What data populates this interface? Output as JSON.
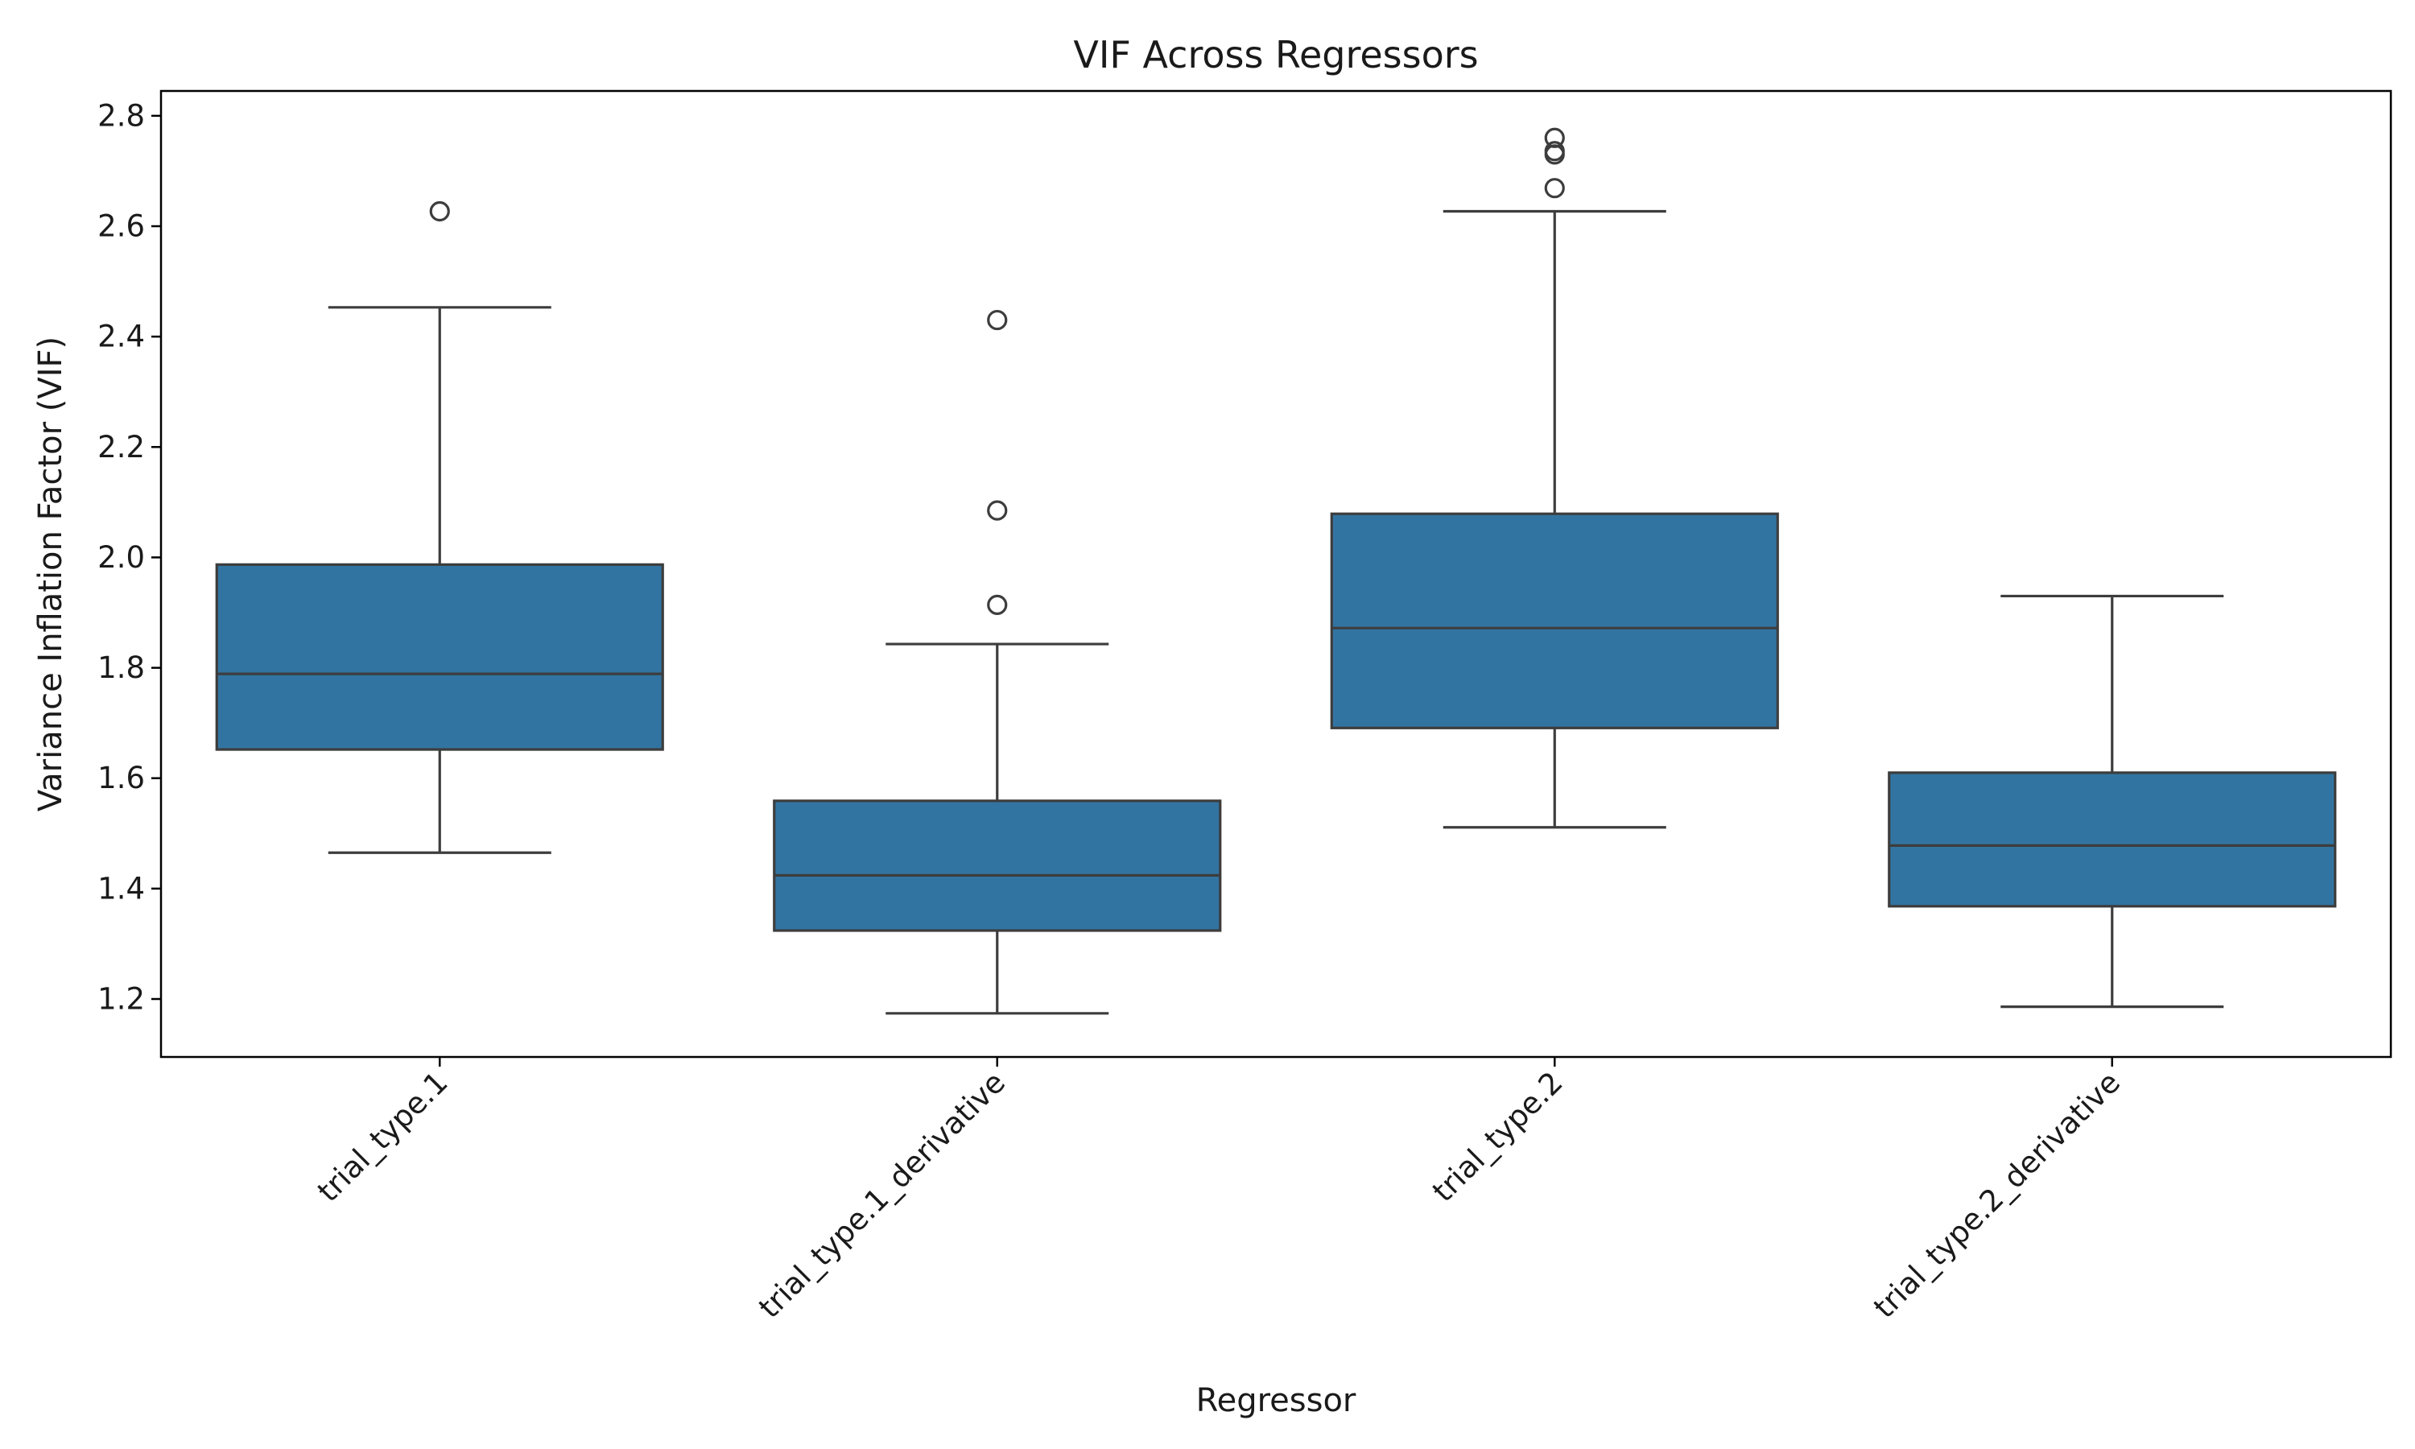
{
  "chart_data": {
    "type": "box",
    "title": "VIF Across Regressors",
    "xlabel": "Regressor",
    "ylabel": "Variance Inflation Factor (VIF)",
    "ylim": [
      1.095,
      2.845
    ],
    "yticks": [
      1.2,
      1.4,
      1.6,
      1.8,
      2.0,
      2.2,
      2.4,
      2.6,
      2.8
    ],
    "ytick_labels": [
      "1.2",
      "1.4",
      "1.6",
      "1.8",
      "2.0",
      "2.2",
      "2.4",
      "2.6",
      "2.8"
    ],
    "grid": false,
    "legend": "none",
    "box_color": "#3274a1",
    "line_color": "#3d3d3d",
    "categories": [
      "trial_type.1",
      "trial_type.1_derivative",
      "trial_type.2",
      "trial_type.2_derivative"
    ],
    "boxes": [
      {
        "category": "trial_type.1",
        "whisker_low": 1.465,
        "q1": 1.652,
        "median": 1.789,
        "q3": 1.987,
        "whisker_high": 2.453,
        "outliers": [
          2.627
        ]
      },
      {
        "category": "trial_type.1_derivative",
        "whisker_low": 1.174,
        "q1": 1.324,
        "median": 1.424,
        "q3": 1.559,
        "whisker_high": 1.843,
        "outliers": [
          1.914,
          2.085,
          2.43
        ]
      },
      {
        "category": "trial_type.2",
        "whisker_low": 1.511,
        "q1": 1.691,
        "median": 1.872,
        "q3": 2.079,
        "whisker_high": 2.627,
        "outliers": [
          2.669,
          2.73,
          2.736,
          2.76
        ]
      },
      {
        "category": "trial_type.2_derivative",
        "whisker_low": 1.186,
        "q1": 1.368,
        "median": 1.478,
        "q3": 1.61,
        "whisker_high": 1.93,
        "outliers": []
      }
    ]
  }
}
